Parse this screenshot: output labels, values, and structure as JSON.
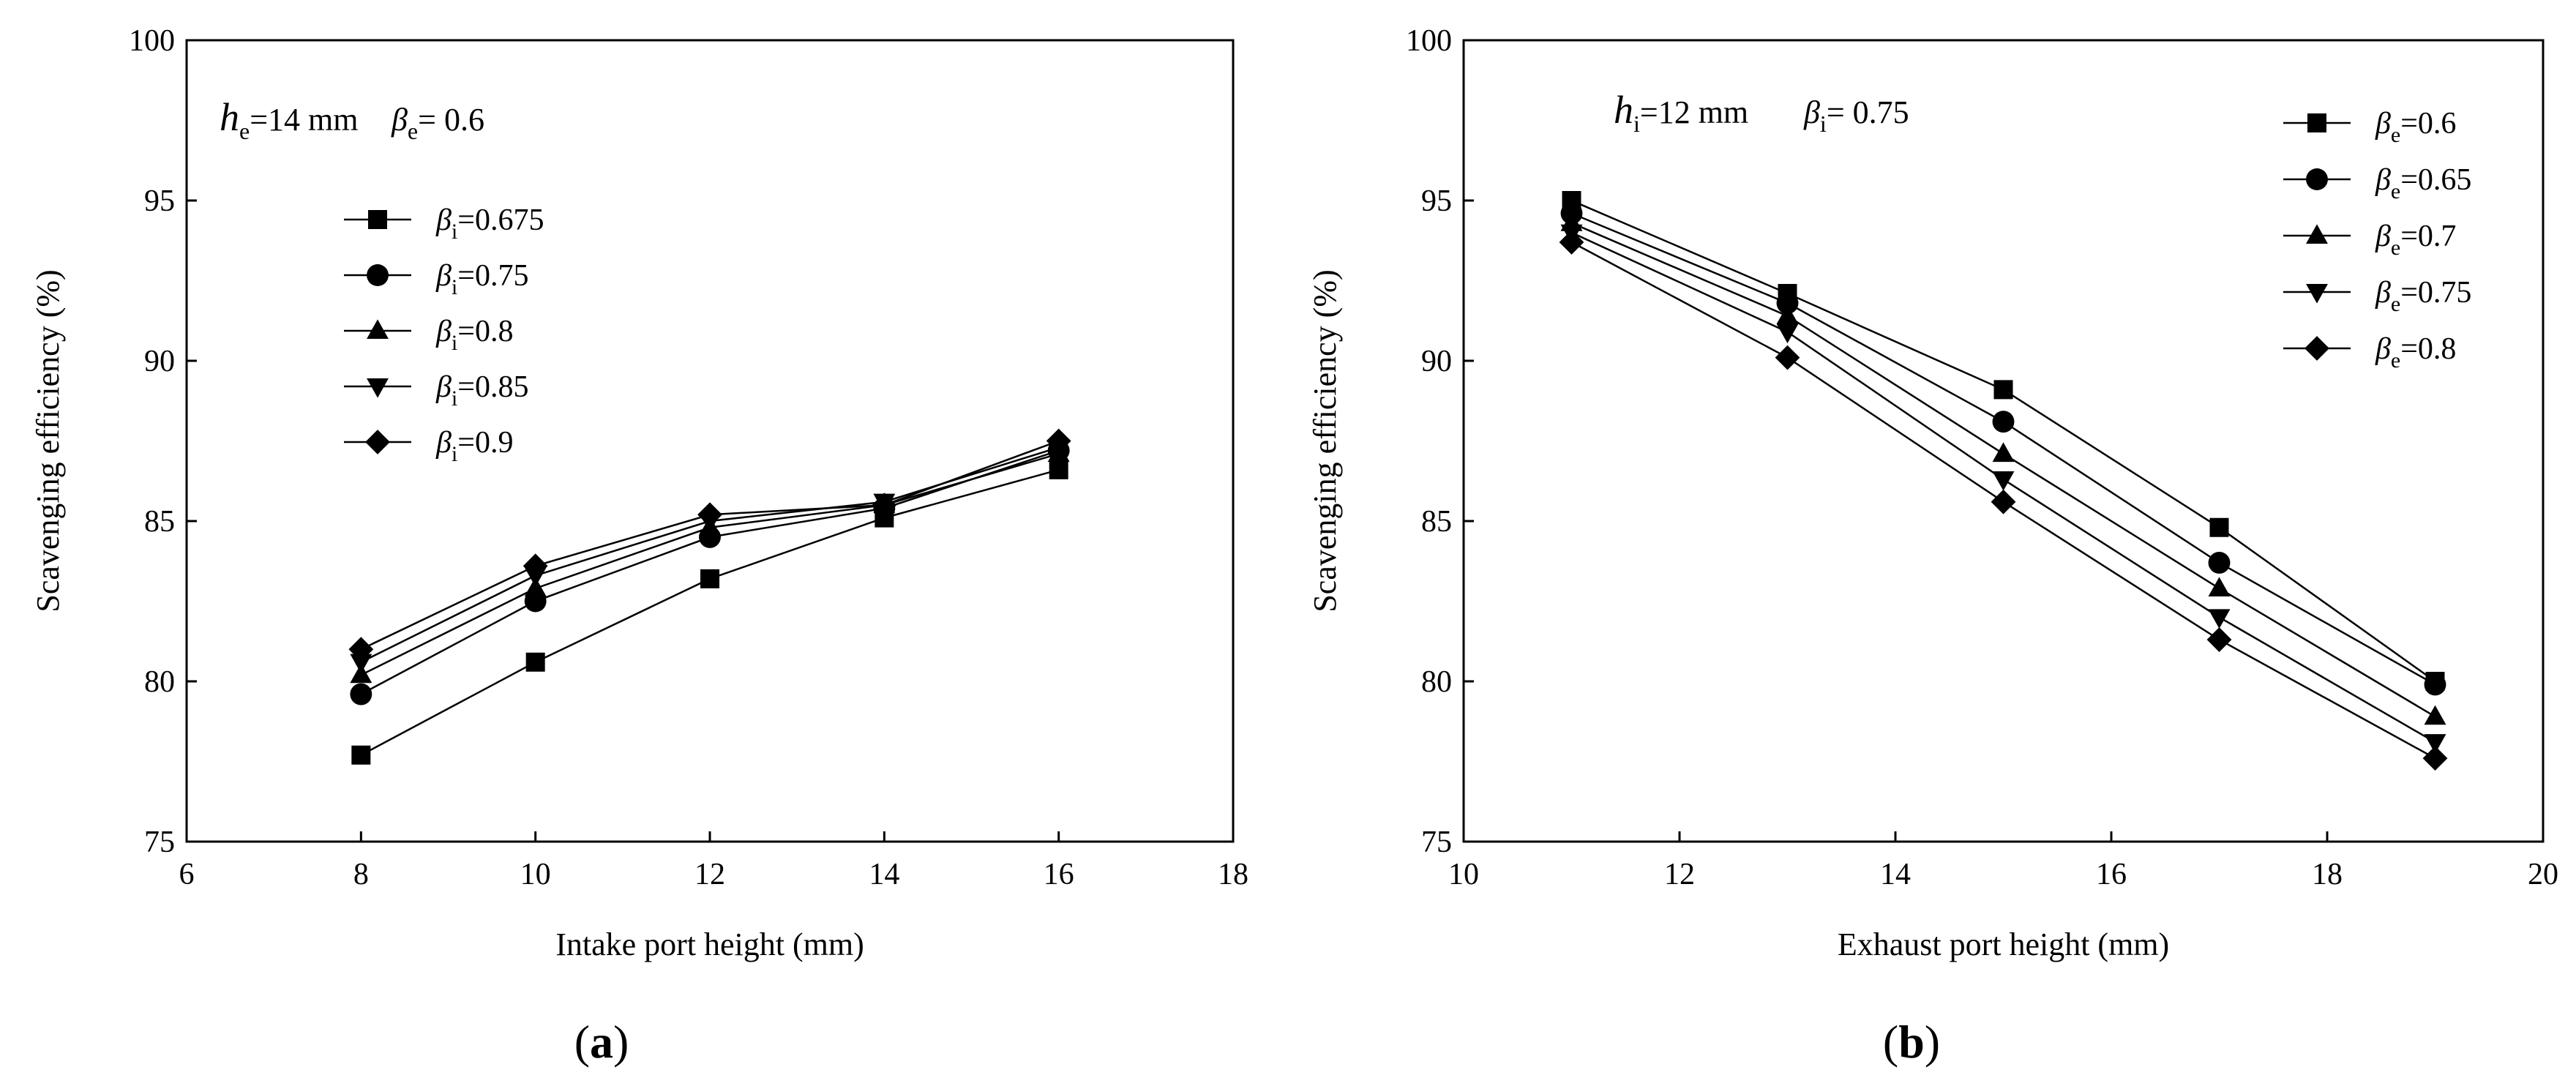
{
  "chart_data": [
    {
      "type": "line",
      "panel_label": "a",
      "xlabel": "Intake port height (mm)",
      "ylabel": "Scavenging efficiency (%)",
      "xlim": [
        6,
        18
      ],
      "ylim": [
        75,
        100
      ],
      "xticks": [
        6,
        8,
        10,
        12,
        14,
        16,
        18
      ],
      "yticks": [
        75,
        80,
        85,
        90,
        95,
        100
      ],
      "grid": false,
      "legend_position": "upper-left",
      "annotation": {
        "symbol": "h",
        "sub": "e",
        "text": "=14 mm",
        "beta_symbol": "β",
        "beta_sub": "e",
        "beta_text": "= 0.6"
      },
      "x": [
        8,
        10,
        12,
        14,
        16
      ],
      "series": [
        {
          "name": "=0.675",
          "symbol": "β",
          "sub": "i",
          "marker": "square",
          "values": [
            77.7,
            80.6,
            83.2,
            85.1,
            86.6
          ]
        },
        {
          "name": "=0.75",
          "symbol": "β",
          "sub": "i",
          "marker": "circle",
          "values": [
            79.6,
            82.5,
            84.5,
            85.4,
            87.2
          ]
        },
        {
          "name": "=0.8",
          "symbol": "β",
          "sub": "i",
          "marker": "triangle-up",
          "values": [
            80.2,
            82.9,
            84.8,
            85.5,
            87.1
          ]
        },
        {
          "name": "=0.85",
          "symbol": "β",
          "sub": "i",
          "marker": "triangle-down",
          "values": [
            80.6,
            83.3,
            85.0,
            85.6,
            87.3
          ]
        },
        {
          "name": "=0.9",
          "symbol": "β",
          "sub": "i",
          "marker": "diamond",
          "values": [
            81.0,
            83.6,
            85.2,
            85.5,
            87.5
          ]
        }
      ]
    },
    {
      "type": "line",
      "panel_label": "b",
      "xlabel": "Exhaust port height (mm)",
      "ylabel": "Scavenging efficiency (%)",
      "xlim": [
        10,
        20
      ],
      "ylim": [
        75,
        100
      ],
      "xticks": [
        10,
        12,
        14,
        16,
        18,
        20
      ],
      "yticks": [
        75,
        80,
        85,
        90,
        95,
        100
      ],
      "grid": false,
      "legend_position": "upper-right",
      "annotation": {
        "symbol": "h",
        "sub": "i",
        "text": "=12 mm",
        "beta_symbol": "β",
        "beta_sub": "i",
        "beta_text": "= 0.75"
      },
      "x": [
        11,
        13,
        15,
        17,
        19
      ],
      "series": [
        {
          "name": "=0.6",
          "symbol": "β",
          "sub": "e",
          "marker": "square",
          "values": [
            95.0,
            92.1,
            89.1,
            84.8,
            80.0
          ]
        },
        {
          "name": "=0.65",
          "symbol": "β",
          "sub": "e",
          "marker": "circle",
          "values": [
            94.6,
            91.8,
            88.1,
            83.7,
            79.9
          ]
        },
        {
          "name": "=0.7",
          "symbol": "β",
          "sub": "e",
          "marker": "triangle-up",
          "values": [
            94.3,
            91.4,
            87.1,
            82.9,
            78.9
          ]
        },
        {
          "name": "=0.75",
          "symbol": "β",
          "sub": "e",
          "marker": "triangle-down",
          "values": [
            94.0,
            90.9,
            86.3,
            82.0,
            78.1
          ]
        },
        {
          "name": "=0.8",
          "symbol": "β",
          "sub": "e",
          "marker": "diamond",
          "values": [
            93.7,
            90.1,
            85.6,
            81.3,
            77.6
          ]
        }
      ]
    }
  ]
}
